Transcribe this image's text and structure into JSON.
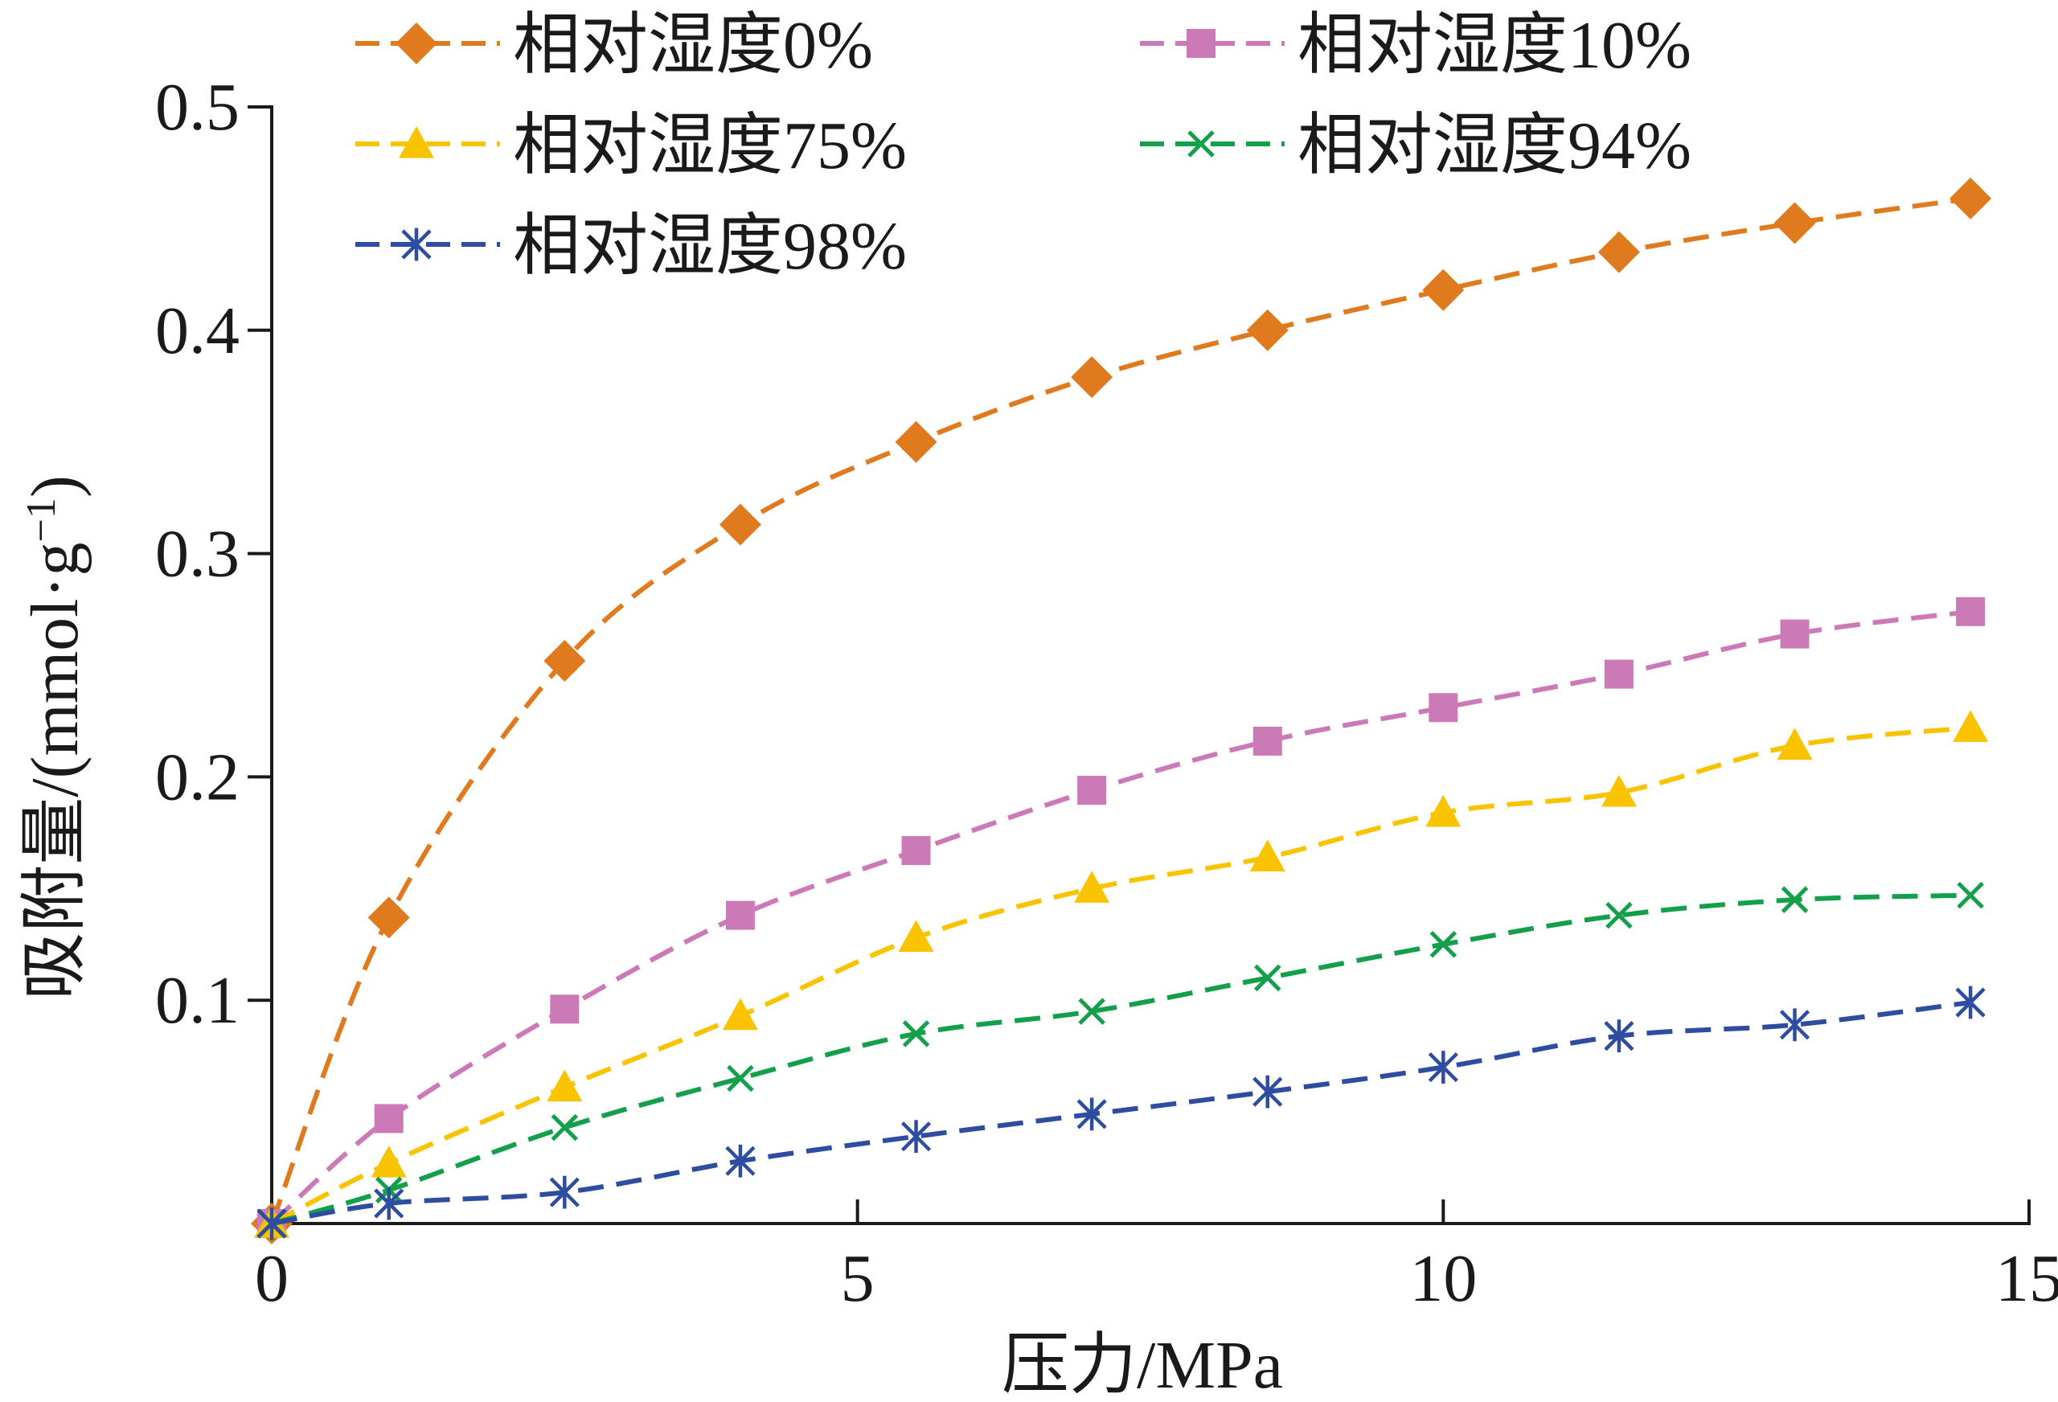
{
  "chart_data": {
    "type": "line",
    "xlabel": "压力/MPa",
    "ylabel": "吸附量/(mmol·g",
    "ylabel_sup": "−1",
    "ylabel_close": ")",
    "xlim": [
      0,
      15
    ],
    "ylim": [
      0,
      0.5
    ],
    "xticks": [
      0,
      5,
      10,
      15
    ],
    "xtick_labels": [
      "0",
      "5",
      "10",
      "15"
    ],
    "yticks": [
      0.1,
      0.2,
      0.3,
      0.4,
      0.5
    ],
    "ytick_labels": [
      "0.1",
      "0.2",
      "0.3",
      "0.4",
      "0.5"
    ],
    "grid": false,
    "legend_position": "top",
    "x": [
      0,
      1,
      2.5,
      4,
      5.5,
      7,
      8.5,
      10,
      11.5,
      13,
      14.5
    ],
    "series": [
      {
        "name": "相对湿度0%",
        "color": "#E07A1E",
        "marker": "diamond",
        "values": [
          0,
          0.137,
          0.252,
          0.313,
          0.35,
          0.379,
          0.4,
          0.418,
          0.435,
          0.448,
          0.459
        ]
      },
      {
        "name": "相对湿度10%",
        "color": "#CC79B8",
        "marker": "square",
        "values": [
          0,
          0.047,
          0.096,
          0.138,
          0.167,
          0.194,
          0.216,
          0.231,
          0.246,
          0.264,
          0.274
        ]
      },
      {
        "name": "相对湿度75%",
        "color": "#F9C300",
        "marker": "triangle",
        "values": [
          0,
          0.027,
          0.061,
          0.093,
          0.128,
          0.15,
          0.164,
          0.184,
          0.193,
          0.214,
          0.222
        ]
      },
      {
        "name": "相对湿度94%",
        "color": "#14A04B",
        "marker": "x",
        "values": [
          0,
          0.015,
          0.043,
          0.065,
          0.085,
          0.095,
          0.11,
          0.125,
          0.138,
          0.145,
          0.147
        ]
      },
      {
        "name": "相对湿度98%",
        "color": "#2E4DA0",
        "marker": "asterisk",
        "values": [
          0,
          0.009,
          0.014,
          0.028,
          0.039,
          0.049,
          0.059,
          0.07,
          0.084,
          0.089,
          0.099
        ]
      }
    ]
  }
}
